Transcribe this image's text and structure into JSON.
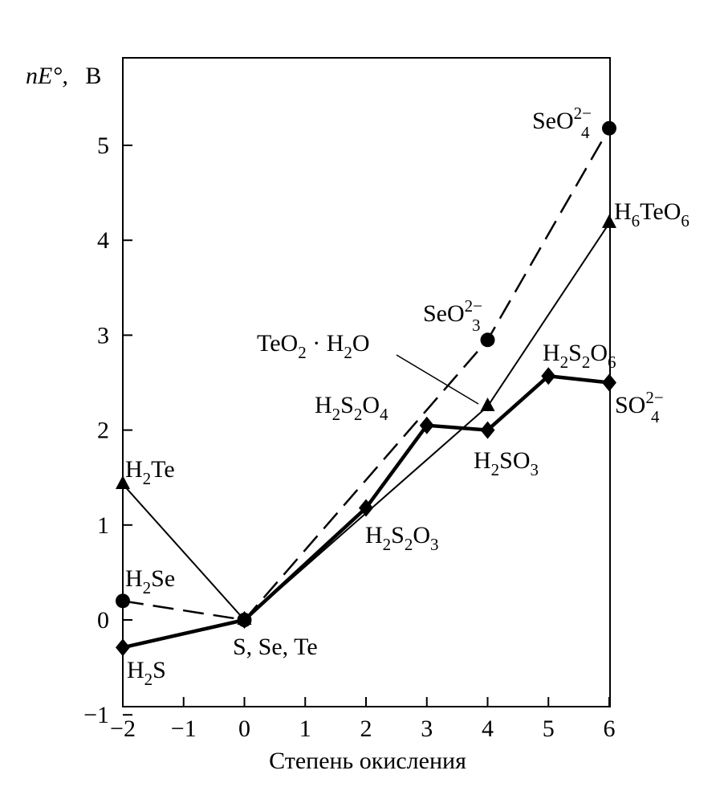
{
  "chart_data": {
    "type": "line",
    "ylabel": "nE°, В",
    "xlabel": "Степень окисления",
    "xlim": [
      -2,
      6
    ],
    "ylim": [
      -1,
      5.75
    ],
    "x_ticks": [
      -2,
      -1,
      0,
      1,
      2,
      3,
      4,
      5,
      6
    ],
    "y_ticks": [
      -1,
      0,
      1,
      2,
      3,
      4,
      5
    ],
    "grid": false,
    "series": [
      {
        "element": "S",
        "marker": "diamond",
        "line": "thick-solid",
        "points": [
          {
            "x": -2,
            "y": -0.29,
            "label": "H2S"
          },
          {
            "x": 0,
            "y": 0,
            "label": "S, Se, Te"
          },
          {
            "x": 2,
            "y": 1.18,
            "label": "H2S2O3"
          },
          {
            "x": 3,
            "y": 2.05,
            "label": "H2S2O4"
          },
          {
            "x": 4,
            "y": 2.0,
            "label": "H2SO3"
          },
          {
            "x": 5,
            "y": 2.57,
            "label": "H2S2O6"
          },
          {
            "x": 6,
            "y": 2.5,
            "label": "SO4 2−"
          }
        ]
      },
      {
        "element": "Se",
        "marker": "circle",
        "line": "dashed",
        "points": [
          {
            "x": -2,
            "y": 0.2,
            "label": "H2Se"
          },
          {
            "x": 0,
            "y": 0
          },
          {
            "x": 4,
            "y": 2.95,
            "label": "SeO3 2−"
          },
          {
            "x": 6,
            "y": 5.18,
            "label": "SeO4 2−"
          }
        ]
      },
      {
        "element": "Te",
        "marker": "triangle",
        "line": "thin-solid",
        "points": [
          {
            "x": -2,
            "y": 1.43,
            "label": "H2Te"
          },
          {
            "x": 0,
            "y": 0
          },
          {
            "x": 4,
            "y": 2.25,
            "label": "TeO2 · H2O"
          },
          {
            "x": 6,
            "y": 4.18,
            "label": "H6TeO6"
          }
        ]
      }
    ]
  },
  "labels": {
    "ylabel_main": "nE°,",
    "ylabel_unit": "В",
    "h2te": {
      "a": "H",
      "s1": "2",
      "b": "Te"
    },
    "h2se": {
      "a": "H",
      "s1": "2",
      "b": "Se"
    },
    "h2s": {
      "a": "H",
      "s1": "2",
      "b": "S"
    },
    "sse": "S,  Se,  Te",
    "h2s2o3": {
      "a": "H",
      "s1": "2",
      "b": "S",
      "s2": "2",
      "c": "O",
      "s3": "3"
    },
    "h2s2o4": {
      "a": "H",
      "s1": "2",
      "b": "S",
      "s2": "2",
      "c": "O",
      "s3": "4"
    },
    "h2so3": {
      "a": "H",
      "s1": "2",
      "b": "SO",
      "s2": "3"
    },
    "h2s2o6": {
      "a": "H",
      "s1": "2",
      "b": "S",
      "s2": "2",
      "c": "O",
      "s3": "6"
    },
    "so4": {
      "a": "SO",
      "sup": "2−",
      "sub": "4"
    },
    "seo3": {
      "a": "SeO",
      "sup": "2−",
      "sub": "3"
    },
    "seo4": {
      "a": "SeO",
      "sup": "2−",
      "sub": "4"
    },
    "h6teo6": {
      "a": "H",
      "s1": "6",
      "b": "TeO",
      "s2": "6"
    },
    "teo2": {
      "a": "TeO",
      "s1": "2",
      "b": " · H",
      "s2": "2",
      "c": "O"
    }
  }
}
